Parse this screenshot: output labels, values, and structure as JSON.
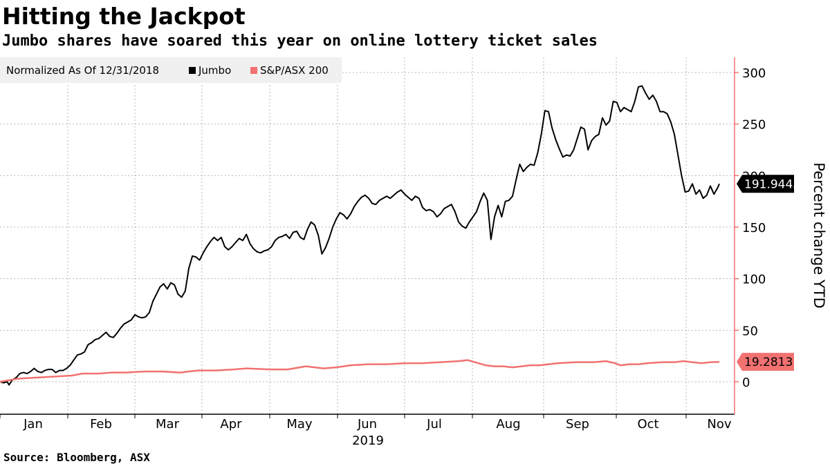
{
  "title": "Hitting the Jackpot",
  "subtitle": "Jumbo shares have soared this year on online lottery ticket sales",
  "source": "Source:  Bloomberg, ASX",
  "chart_data": {
    "type": "line",
    "legend_note": "Normalized As Of 12/31/2018",
    "legend_placement": "top-left",
    "ylabel": "Percent change YTD",
    "y_axis_side": "right",
    "ylim": [
      -30,
      310
    ],
    "yticks": [
      0,
      50,
      100,
      150,
      200,
      250,
      300
    ],
    "grid": true,
    "x_tick_labels": [
      "Jan",
      "Feb",
      "Mar",
      "Apr",
      "May",
      "Jun",
      "Jul",
      "Aug",
      "Sep",
      "Oct",
      "Nov"
    ],
    "x_year_label": "2019",
    "colors": {
      "jumbo": "#000000",
      "asx": "#f27171",
      "axis": "#f27171",
      "grid": "#b5b5b5"
    },
    "series": [
      {
        "name": "Jumbo",
        "end_label": "191.9445",
        "points": [
          [
            0,
            0
          ],
          [
            2,
            -1
          ],
          [
            4,
            0
          ],
          [
            5,
            -3
          ],
          [
            7,
            2
          ],
          [
            9,
            4
          ],
          [
            11,
            8
          ],
          [
            13,
            9
          ],
          [
            15,
            8
          ],
          [
            17,
            10
          ],
          [
            19,
            13
          ],
          [
            21,
            10
          ],
          [
            23,
            9
          ],
          [
            25,
            11
          ],
          [
            27,
            12
          ],
          [
            29,
            12
          ],
          [
            31,
            9
          ],
          [
            33,
            11
          ],
          [
            35,
            11
          ],
          [
            37,
            13
          ],
          [
            39,
            16
          ],
          [
            41,
            21
          ],
          [
            43,
            26
          ],
          [
            45,
            27
          ],
          [
            47,
            29
          ],
          [
            49,
            36
          ],
          [
            51,
            38
          ],
          [
            53,
            41
          ],
          [
            55,
            42
          ],
          [
            57,
            45
          ],
          [
            59,
            48
          ],
          [
            61,
            44
          ],
          [
            63,
            43
          ],
          [
            65,
            47
          ],
          [
            67,
            52
          ],
          [
            69,
            56
          ],
          [
            71,
            58
          ],
          [
            73,
            60
          ],
          [
            75,
            65
          ],
          [
            77,
            63
          ],
          [
            79,
            62
          ],
          [
            81,
            63
          ],
          [
            83,
            67
          ],
          [
            85,
            78
          ],
          [
            87,
            85
          ],
          [
            89,
            92
          ],
          [
            91,
            95
          ],
          [
            93,
            90
          ],
          [
            95,
            96
          ],
          [
            97,
            94
          ],
          [
            99,
            85
          ],
          [
            101,
            82
          ],
          [
            103,
            88
          ],
          [
            105,
            110
          ],
          [
            107,
            122
          ],
          [
            109,
            121
          ],
          [
            111,
            118
          ],
          [
            113,
            125
          ],
          [
            115,
            131
          ],
          [
            117,
            136
          ],
          [
            119,
            140
          ],
          [
            121,
            137
          ],
          [
            123,
            140
          ],
          [
            125,
            131
          ],
          [
            127,
            128
          ],
          [
            129,
            131
          ],
          [
            131,
            135
          ],
          [
            133,
            139
          ],
          [
            135,
            137
          ],
          [
            137,
            143
          ],
          [
            139,
            134
          ],
          [
            141,
            129
          ],
          [
            143,
            126
          ],
          [
            145,
            125
          ],
          [
            147,
            127
          ],
          [
            149,
            128
          ],
          [
            151,
            131
          ],
          [
            153,
            137
          ],
          [
            155,
            140
          ],
          [
            157,
            141
          ],
          [
            159,
            143
          ],
          [
            161,
            139
          ],
          [
            163,
            145
          ],
          [
            165,
            146
          ],
          [
            167,
            140
          ],
          [
            169,
            138
          ],
          [
            171,
            148
          ],
          [
            173,
            155
          ],
          [
            175,
            152
          ],
          [
            177,
            142
          ],
          [
            179,
            124
          ],
          [
            181,
            130
          ],
          [
            183,
            139
          ],
          [
            185,
            150
          ],
          [
            187,
            158
          ],
          [
            189,
            164
          ],
          [
            191,
            162
          ],
          [
            193,
            158
          ],
          [
            195,
            163
          ],
          [
            197,
            170
          ],
          [
            199,
            175
          ],
          [
            201,
            179
          ],
          [
            203,
            181
          ],
          [
            205,
            178
          ],
          [
            207,
            173
          ],
          [
            209,
            172
          ],
          [
            211,
            176
          ],
          [
            213,
            178
          ],
          [
            215,
            180
          ],
          [
            217,
            178
          ],
          [
            219,
            181
          ],
          [
            221,
            184
          ],
          [
            223,
            186
          ],
          [
            225,
            182
          ],
          [
            227,
            179
          ],
          [
            229,
            176
          ],
          [
            231,
            180
          ],
          [
            233,
            178
          ],
          [
            235,
            169
          ],
          [
            237,
            166
          ],
          [
            239,
            167
          ],
          [
            241,
            165
          ],
          [
            243,
            160
          ],
          [
            245,
            163
          ],
          [
            247,
            168
          ],
          [
            249,
            170
          ],
          [
            251,
            172
          ],
          [
            253,
            165
          ],
          [
            255,
            155
          ],
          [
            257,
            151
          ],
          [
            259,
            149
          ],
          [
            261,
            155
          ],
          [
            263,
            160
          ],
          [
            265,
            165
          ],
          [
            267,
            175
          ],
          [
            269,
            183
          ],
          [
            271,
            176
          ],
          [
            273,
            138
          ],
          [
            275,
            160
          ],
          [
            277,
            171
          ],
          [
            279,
            160
          ],
          [
            281,
            175
          ],
          [
            283,
            176
          ],
          [
            285,
            180
          ],
          [
            287,
            196
          ],
          [
            289,
            211
          ],
          [
            291,
            204
          ],
          [
            293,
            208
          ],
          [
            295,
            211
          ],
          [
            297,
            210
          ],
          [
            299,
            222
          ],
          [
            301,
            240
          ],
          [
            303,
            263
          ],
          [
            305,
            262
          ],
          [
            307,
            246
          ],
          [
            309,
            235
          ],
          [
            311,
            226
          ],
          [
            313,
            218
          ],
          [
            315,
            220
          ],
          [
            317,
            219
          ],
          [
            319,
            225
          ],
          [
            321,
            236
          ],
          [
            323,
            247
          ],
          [
            325,
            245
          ],
          [
            327,
            225
          ],
          [
            329,
            234
          ],
          [
            331,
            238
          ],
          [
            333,
            240
          ],
          [
            335,
            256
          ],
          [
            337,
            249
          ],
          [
            339,
            253
          ],
          [
            341,
            272
          ],
          [
            343,
            271
          ],
          [
            345,
            262
          ],
          [
            347,
            266
          ],
          [
            349,
            264
          ],
          [
            351,
            262
          ],
          [
            353,
            272
          ],
          [
            355,
            286
          ],
          [
            357,
            287
          ],
          [
            359,
            280
          ],
          [
            361,
            274
          ],
          [
            363,
            278
          ],
          [
            365,
            272
          ],
          [
            367,
            262
          ],
          [
            369,
            262
          ],
          [
            371,
            260
          ],
          [
            373,
            252
          ],
          [
            375,
            240
          ],
          [
            377,
            220
          ],
          [
            379,
            200
          ],
          [
            381,
            184
          ],
          [
            383,
            185
          ],
          [
            385,
            192
          ],
          [
            387,
            182
          ],
          [
            389,
            186
          ],
          [
            391,
            178
          ],
          [
            393,
            181
          ],
          [
            395,
            190
          ],
          [
            397,
            182
          ],
          [
            399,
            188
          ],
          [
            400,
            192
          ]
        ]
      },
      {
        "name": "S&P/ASX 200",
        "end_label": "19.2813",
        "points": [
          [
            0,
            0
          ],
          [
            10,
            3
          ],
          [
            20,
            4
          ],
          [
            30,
            5
          ],
          [
            40,
            6
          ],
          [
            43,
            7
          ],
          [
            46,
            8
          ],
          [
            55,
            8
          ],
          [
            62,
            9
          ],
          [
            70,
            9
          ],
          [
            80,
            10
          ],
          [
            90,
            10
          ],
          [
            100,
            9
          ],
          [
            110,
            11
          ],
          [
            120,
            11
          ],
          [
            130,
            12
          ],
          [
            137,
            13
          ],
          [
            150,
            12
          ],
          [
            160,
            12
          ],
          [
            170,
            15
          ],
          [
            180,
            13
          ],
          [
            187,
            14
          ],
          [
            195,
            16
          ],
          [
            205,
            17
          ],
          [
            215,
            17
          ],
          [
            225,
            18
          ],
          [
            235,
            18
          ],
          [
            245,
            19
          ],
          [
            255,
            20
          ],
          [
            260,
            21
          ],
          [
            264,
            19
          ],
          [
            270,
            16
          ],
          [
            275,
            15
          ],
          [
            280,
            15
          ],
          [
            285,
            14
          ],
          [
            290,
            15
          ],
          [
            295,
            16
          ],
          [
            300,
            16
          ],
          [
            305,
            17
          ],
          [
            310,
            18
          ],
          [
            320,
            19
          ],
          [
            330,
            19
          ],
          [
            337,
            20
          ],
          [
            342,
            18
          ],
          [
            345,
            16
          ],
          [
            350,
            17
          ],
          [
            355,
            17
          ],
          [
            360,
            18
          ],
          [
            368,
            19
          ],
          [
            375,
            19
          ],
          [
            380,
            20
          ],
          [
            385,
            19
          ],
          [
            390,
            18
          ],
          [
            395,
            19
          ],
          [
            400,
            19.3
          ]
        ]
      }
    ]
  }
}
